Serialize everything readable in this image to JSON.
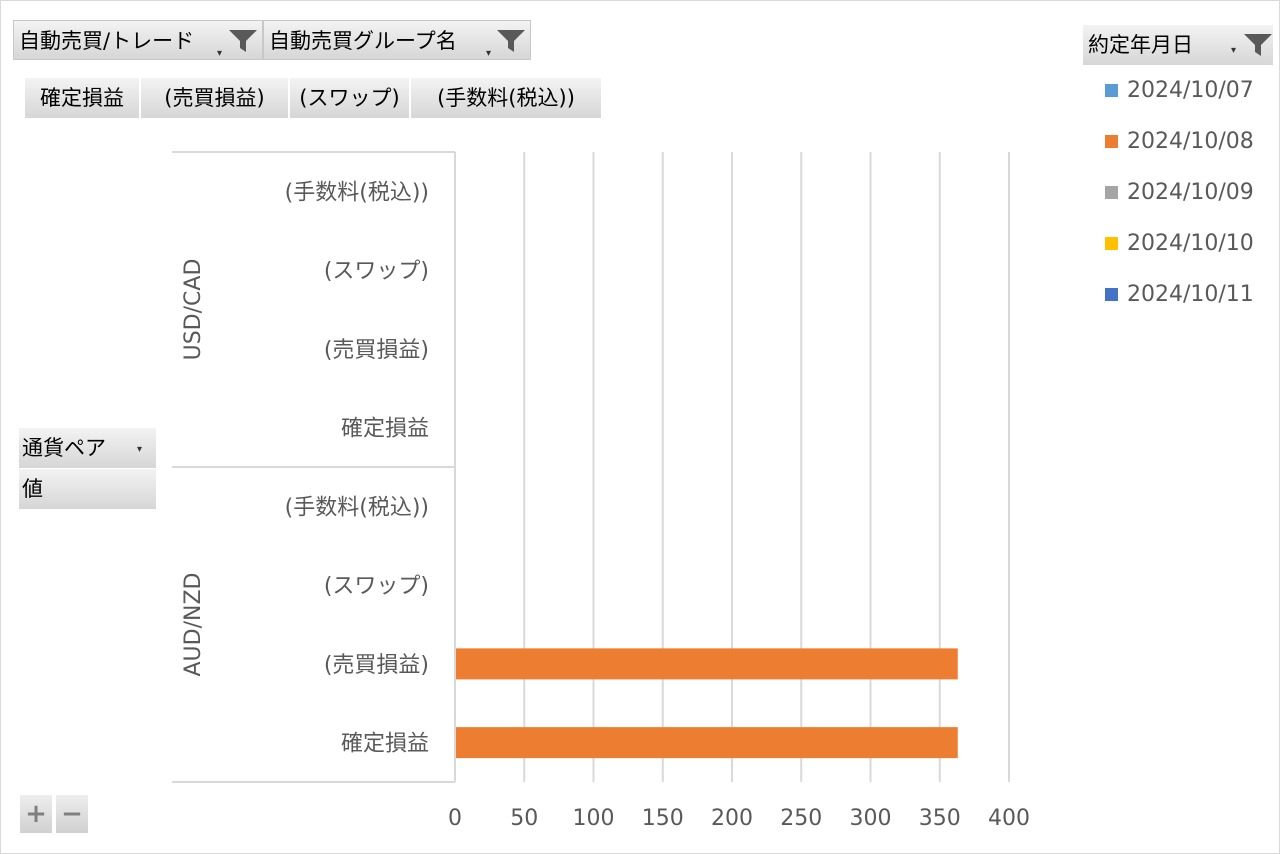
{
  "filters": [
    {
      "label": "自動売買/トレード"
    },
    {
      "label": "自動売買グループ名"
    }
  ],
  "value_fields": [
    "確定損益",
    "(売買損益)",
    "(スワップ)",
    "(手数料(税込))"
  ],
  "row_fields": [
    {
      "label": "通貨ペア"
    },
    {
      "label": "値"
    }
  ],
  "legend": {
    "title": "約定年月日",
    "items": [
      {
        "label": "2024/10/07",
        "color": "#5b9bd5"
      },
      {
        "label": "2024/10/08",
        "color": "#ed7d31"
      },
      {
        "label": "2024/10/09",
        "color": "#a5a5a5"
      },
      {
        "label": "2024/10/10",
        "color": "#ffc000"
      },
      {
        "label": "2024/10/11",
        "color": "#4472c4"
      }
    ]
  },
  "zoom": {
    "plus": "+",
    "minus": "−"
  },
  "chart_data": {
    "type": "bar",
    "orientation": "horizontal",
    "groups": [
      {
        "name": "USD/CAD",
        "categories": [
          "(手数料(税込))",
          "(スワップ)",
          "(売買損益)",
          "確定損益"
        ]
      },
      {
        "name": "AUD/NZD",
        "categories": [
          "(手数料(税込))",
          "(スワップ)",
          "(売買損益)",
          "確定損益"
        ]
      }
    ],
    "series": [
      {
        "name": "2024/10/07",
        "color": "#5b9bd5",
        "values": [
          [
            0,
            0,
            0,
            0
          ],
          [
            0,
            0,
            0,
            0
          ]
        ]
      },
      {
        "name": "2024/10/08",
        "color": "#ed7d31",
        "values": [
          [
            0,
            0,
            0,
            0
          ],
          [
            0,
            0,
            363,
            363
          ]
        ]
      },
      {
        "name": "2024/10/09",
        "color": "#a5a5a5",
        "values": [
          [
            0,
            0,
            0,
            0
          ],
          [
            0,
            0,
            0,
            0
          ]
        ]
      },
      {
        "name": "2024/10/10",
        "color": "#ffc000",
        "values": [
          [
            0,
            0,
            0,
            0
          ],
          [
            0,
            0,
            0,
            0
          ]
        ]
      },
      {
        "name": "2024/10/11",
        "color": "#4472c4",
        "values": [
          [
            0,
            0,
            0,
            0
          ],
          [
            0,
            0,
            0,
            0
          ]
        ]
      }
    ],
    "x_ticks": [
      0,
      50,
      100,
      150,
      200,
      250,
      300,
      350,
      400
    ],
    "xlim": [
      0,
      400
    ],
    "grid": true,
    "legend_position": "right"
  }
}
